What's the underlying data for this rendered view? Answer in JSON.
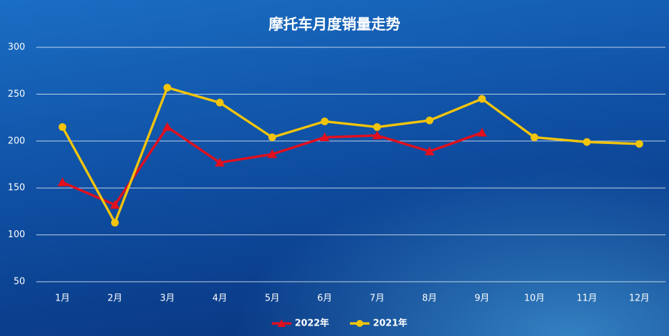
{
  "chart_data": {
    "type": "line",
    "title": "摩托车月度销量走势",
    "categories": [
      "1月",
      "2月",
      "3月",
      "4月",
      "5月",
      "6月",
      "7月",
      "8月",
      "9月",
      "10月",
      "11月",
      "12月"
    ],
    "series": [
      {
        "name": "2022年",
        "color": "#e0101e",
        "marker": "triangle",
        "values": [
          156,
          132,
          215,
          177,
          186,
          204,
          206,
          189,
          209,
          null,
          null,
          null
        ]
      },
      {
        "name": "2021年",
        "color": "#f2c40c",
        "marker": "circle",
        "values": [
          215,
          113,
          257,
          241,
          204,
          221,
          215,
          222,
          245,
          204,
          199,
          197
        ]
      }
    ],
    "ylim": [
      50,
      300
    ],
    "yticks": [
      50,
      100,
      150,
      200,
      250,
      300
    ],
    "grid": true,
    "legend": "bottom"
  }
}
